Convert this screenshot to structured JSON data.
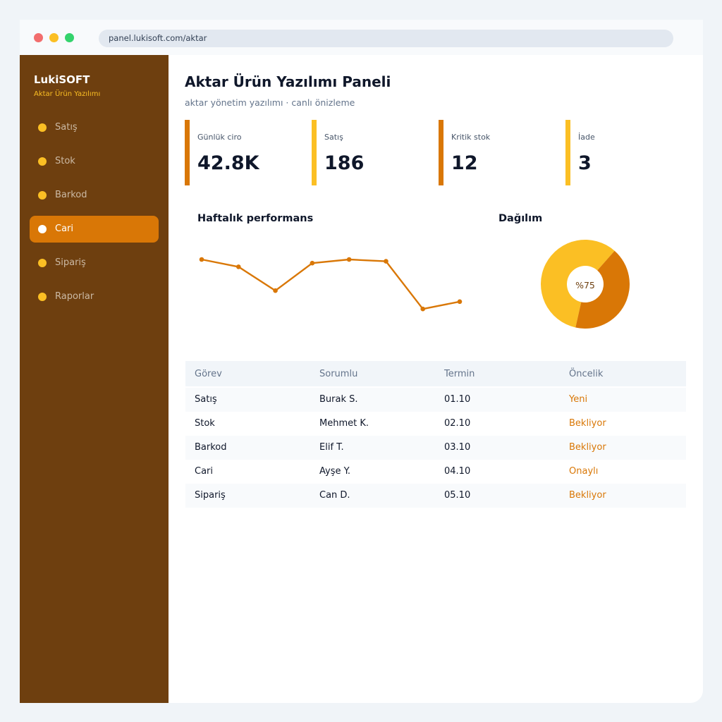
{
  "browser": {
    "url": "panel.lukisoft.com/aktar"
  },
  "sidebar": {
    "brand": "LukiSOFT",
    "subtitle": "Aktar Ürün Yazılımı",
    "items": [
      {
        "label": "Satış",
        "active": false
      },
      {
        "label": "Stok",
        "active": false
      },
      {
        "label": "Barkod",
        "active": false
      },
      {
        "label": "Cari",
        "active": true
      },
      {
        "label": "Sipariş",
        "active": false
      },
      {
        "label": "Raporlar",
        "active": false
      }
    ]
  },
  "header": {
    "title": "Aktar Ürün Yazılımı Paneli",
    "subtitle": "aktar yönetim yazılımı · canlı önizleme"
  },
  "kpis": [
    {
      "label": "Günlük ciro",
      "value": "42.8K",
      "color": "#d97706"
    },
    {
      "label": "Satış",
      "value": "186",
      "color": "#fbbf24"
    },
    {
      "label": "Kritik stok",
      "value": "12",
      "color": "#d97706"
    },
    {
      "label": "İade",
      "value": "3",
      "color": "#fbbf24"
    }
  ],
  "performance": {
    "title": "Haftalık performans"
  },
  "distribution": {
    "title": "Dağılım",
    "label": "%75"
  },
  "chart_data": [
    {
      "type": "line",
      "title": "Haftalık performans",
      "x": [
        1,
        2,
        3,
        4,
        5,
        6,
        7,
        8
      ],
      "series": [
        {
          "values": [
            80,
            72,
            46,
            76,
            80,
            78,
            26,
            34
          ]
        }
      ],
      "ylim": [
        0,
        100
      ],
      "grid": false,
      "color": "#d97706"
    },
    {
      "type": "pie",
      "title": "Dağılım",
      "values": [
        58,
        42
      ],
      "colors": [
        "#fbbf24",
        "#d97706"
      ],
      "center_label": "%75"
    }
  ],
  "table": {
    "headers": [
      "Görev",
      "Sorumlu",
      "Termin",
      "Öncelik"
    ],
    "rows": [
      [
        "Satış",
        "Burak S.",
        "01.10",
        "Yeni"
      ],
      [
        "Stok",
        "Mehmet K.",
        "02.10",
        "Bekliyor"
      ],
      [
        "Barkod",
        "Elif T.",
        "03.10",
        "Bekliyor"
      ],
      [
        "Cari",
        "Ayşe Y.",
        "04.10",
        "Onaylı"
      ],
      [
        "Sipariş",
        "Can D.",
        "05.10",
        "Bekliyor"
      ]
    ]
  },
  "colors": {
    "accent": "#d97706",
    "accent_light": "#fbbf24",
    "sidebar": "#6e3f0f"
  }
}
